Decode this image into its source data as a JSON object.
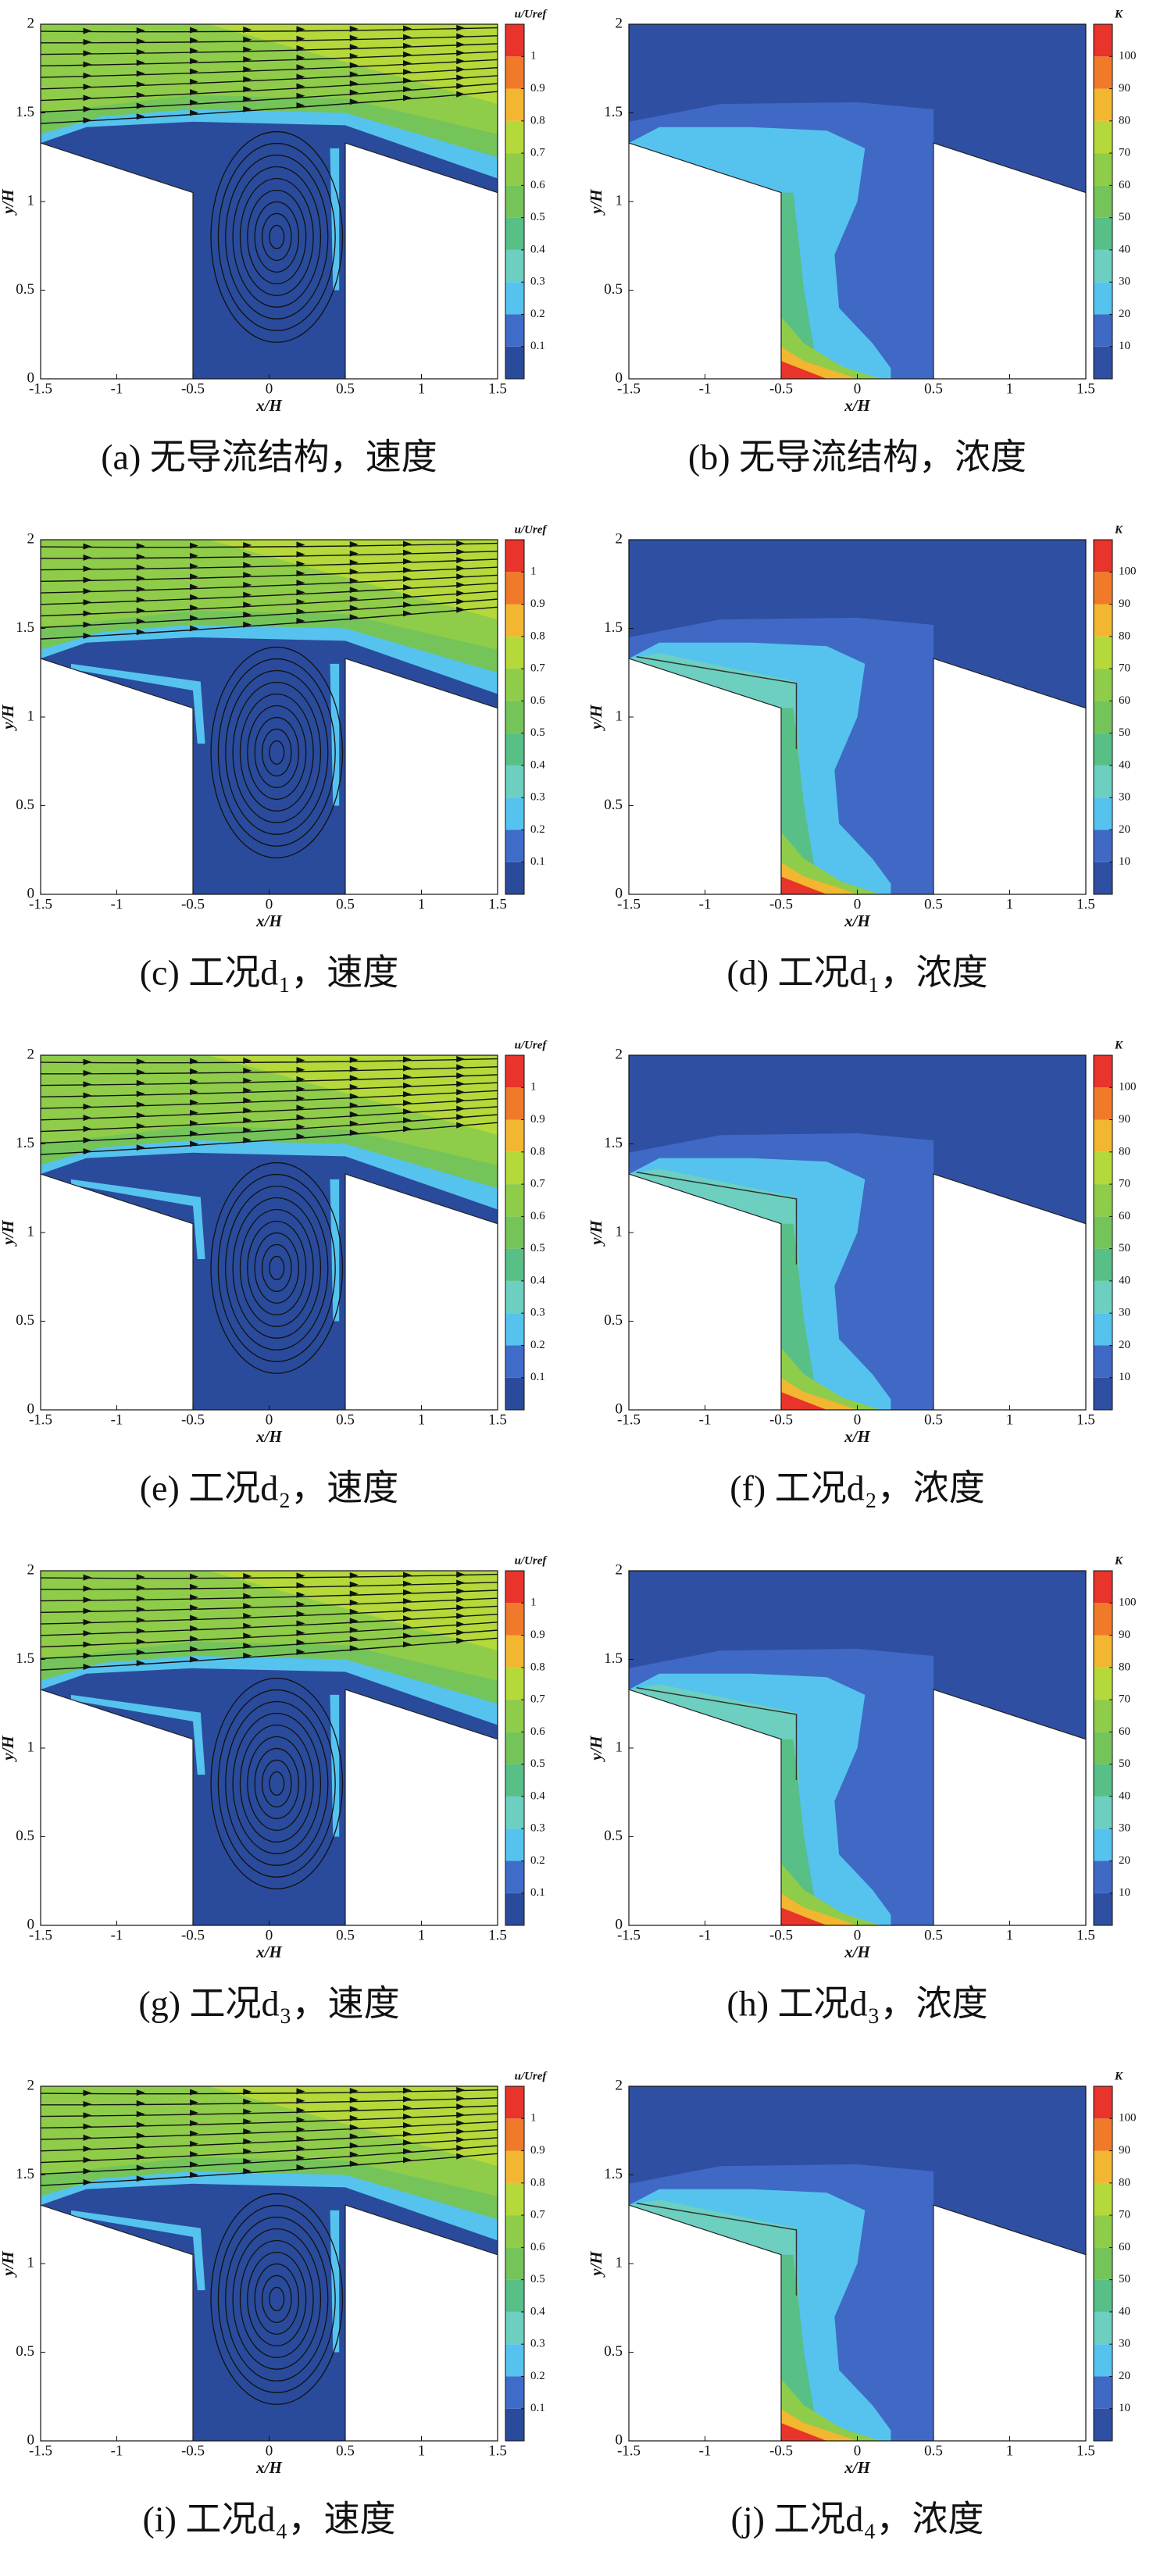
{
  "chart_data": [
    {
      "type": "velocity-contour",
      "caption": "(a) 无导流结构，速度",
      "xlabel": "x/H",
      "ylabel": "y/H",
      "xlim": [
        -1.5,
        1.5
      ],
      "ylim": [
        0,
        2
      ],
      "xticks": [
        -1.5,
        -1,
        -0.5,
        0,
        0.5,
        1,
        1.5
      ],
      "yticks": [
        0,
        0.5,
        1,
        1.5,
        2
      ],
      "colorbar": {
        "title": "u/Uref",
        "lim": [
          0,
          1.1
        ],
        "ticks": [
          0.1,
          0.2,
          0.3,
          0.4,
          0.5,
          0.6,
          0.7,
          0.8,
          0.9,
          1
        ],
        "colors": [
          "#2a4b9b",
          "#3e6cc8",
          "#55c3ee",
          "#6ccfc0",
          "#58bf86",
          "#74c45a",
          "#8fcc4a",
          "#b5d83a",
          "#f2b630",
          "#f07a2a",
          "#e8342a"
        ]
      }
    },
    {
      "type": "concentration-contour",
      "caption": "(b) 无导流结构，浓度",
      "xlabel": "x/H",
      "ylabel": "y/H",
      "xlim": [
        -1.5,
        1.5
      ],
      "ylim": [
        0,
        2
      ],
      "xticks": [
        -1.5,
        -1,
        -0.5,
        0,
        0.5,
        1,
        1.5
      ],
      "yticks": [
        0,
        0.5,
        1,
        1.5,
        2
      ],
      "colorbar": {
        "title": "K",
        "lim": [
          0,
          110
        ],
        "ticks": [
          10,
          20,
          30,
          40,
          50,
          60,
          70,
          80,
          90,
          100
        ],
        "colors": [
          "#2f4fa3",
          "#3f69c4",
          "#55c3ee",
          "#6ccfc0",
          "#58bf86",
          "#74c45a",
          "#8fcc4a",
          "#b5d83a",
          "#f2b630",
          "#f07a2a",
          "#e8342a"
        ]
      }
    },
    {
      "type": "velocity-contour",
      "caption": "(c) 工况d₁，速度",
      "xlabel": "x/H",
      "ylabel": "y/H",
      "xlim": [
        -1.5,
        1.5
      ],
      "ylim": [
        0,
        2
      ],
      "xticks": [
        -1.5,
        -1,
        -0.5,
        0,
        0.5,
        1,
        1.5
      ],
      "yticks": [
        0,
        0.5,
        1,
        1.5,
        2
      ],
      "colorbar": {
        "title": "u/Uref",
        "lim": [
          0,
          1.1
        ],
        "ticks": [
          0.1,
          0.2,
          0.3,
          0.4,
          0.5,
          0.6,
          0.7,
          0.8,
          0.9,
          1
        ],
        "colors": [
          "#2a4b9b",
          "#3e6cc8",
          "#55c3ee",
          "#6ccfc0",
          "#58bf86",
          "#74c45a",
          "#8fcc4a",
          "#b5d83a",
          "#f2b630",
          "#f07a2a",
          "#e8342a"
        ]
      }
    },
    {
      "type": "concentration-contour",
      "caption": "(d) 工况d₁，浓度",
      "xlabel": "x/H",
      "ylabel": "y/H",
      "xlim": [
        -1.5,
        1.5
      ],
      "ylim": [
        0,
        2
      ],
      "xticks": [
        -1.5,
        -1,
        -0.5,
        0,
        0.5,
        1,
        1.5
      ],
      "yticks": [
        0,
        0.5,
        1,
        1.5,
        2
      ],
      "colorbar": {
        "title": "K",
        "lim": [
          0,
          110
        ],
        "ticks": [
          10,
          20,
          30,
          40,
          50,
          60,
          70,
          80,
          90,
          100
        ],
        "colors": [
          "#2f4fa3",
          "#3f69c4",
          "#55c3ee",
          "#6ccfc0",
          "#58bf86",
          "#74c45a",
          "#8fcc4a",
          "#b5d83a",
          "#f2b630",
          "#f07a2a",
          "#e8342a"
        ]
      }
    },
    {
      "type": "velocity-contour",
      "caption": "(e) 工况d₂，速度",
      "xlabel": "x/H",
      "ylabel": "y/H",
      "xlim": [
        -1.5,
        1.5
      ],
      "ylim": [
        0,
        2
      ],
      "xticks": [
        -1.5,
        -1,
        -0.5,
        0,
        0.5,
        1,
        1.5
      ],
      "yticks": [
        0,
        0.5,
        1,
        1.5,
        2
      ],
      "colorbar": {
        "title": "u/Uref",
        "lim": [
          0,
          1.1
        ],
        "ticks": [
          0.1,
          0.2,
          0.3,
          0.4,
          0.5,
          0.6,
          0.7,
          0.8,
          0.9,
          1
        ],
        "colors": [
          "#2a4b9b",
          "#3e6cc8",
          "#55c3ee",
          "#6ccfc0",
          "#58bf86",
          "#74c45a",
          "#8fcc4a",
          "#b5d83a",
          "#f2b630",
          "#f07a2a",
          "#e8342a"
        ]
      }
    },
    {
      "type": "concentration-contour",
      "caption": "(f) 工况d₂，浓度",
      "xlabel": "x/H",
      "ylabel": "y/H",
      "xlim": [
        -1.5,
        1.5
      ],
      "ylim": [
        0,
        2
      ],
      "xticks": [
        -1.5,
        -1,
        -0.5,
        0,
        0.5,
        1,
        1.5
      ],
      "yticks": [
        0,
        0.5,
        1,
        1.5,
        2
      ],
      "colorbar": {
        "title": "K",
        "lim": [
          0,
          110
        ],
        "ticks": [
          10,
          20,
          30,
          40,
          50,
          60,
          70,
          80,
          90,
          100
        ],
        "colors": [
          "#2f4fa3",
          "#3f69c4",
          "#55c3ee",
          "#6ccfc0",
          "#58bf86",
          "#74c45a",
          "#8fcc4a",
          "#b5d83a",
          "#f2b630",
          "#f07a2a",
          "#e8342a"
        ]
      }
    },
    {
      "type": "velocity-contour",
      "caption": "(g) 工况d₃，速度",
      "xlabel": "x/H",
      "ylabel": "y/H",
      "xlim": [
        -1.5,
        1.5
      ],
      "ylim": [
        0,
        2
      ],
      "xticks": [
        -1.5,
        -1,
        -0.5,
        0,
        0.5,
        1,
        1.5
      ],
      "yticks": [
        0,
        0.5,
        1,
        1.5,
        2
      ],
      "colorbar": {
        "title": "u/Uref",
        "lim": [
          0,
          1.1
        ],
        "ticks": [
          0.1,
          0.2,
          0.3,
          0.4,
          0.5,
          0.6,
          0.7,
          0.8,
          0.9,
          1
        ],
        "colors": [
          "#2a4b9b",
          "#3e6cc8",
          "#55c3ee",
          "#6ccfc0",
          "#58bf86",
          "#74c45a",
          "#8fcc4a",
          "#b5d83a",
          "#f2b630",
          "#f07a2a",
          "#e8342a"
        ]
      }
    },
    {
      "type": "concentration-contour",
      "caption": "(h) 工况d₃，浓度",
      "xlabel": "x/H",
      "ylabel": "y/H",
      "xlim": [
        -1.5,
        1.5
      ],
      "ylim": [
        0,
        2
      ],
      "xticks": [
        -1.5,
        -1,
        -0.5,
        0,
        0.5,
        1,
        1.5
      ],
      "yticks": [
        0,
        0.5,
        1,
        1.5,
        2
      ],
      "colorbar": {
        "title": "K",
        "lim": [
          0,
          110
        ],
        "ticks": [
          10,
          20,
          30,
          40,
          50,
          60,
          70,
          80,
          90,
          100
        ],
        "colors": [
          "#2f4fa3",
          "#3f69c4",
          "#55c3ee",
          "#6ccfc0",
          "#58bf86",
          "#74c45a",
          "#8fcc4a",
          "#b5d83a",
          "#f2b630",
          "#f07a2a",
          "#e8342a"
        ]
      }
    },
    {
      "type": "velocity-contour",
      "caption": "(i) 工况d₄，速度",
      "xlabel": "x/H",
      "ylabel": "y/H",
      "xlim": [
        -1.5,
        1.5
      ],
      "ylim": [
        0,
        2
      ],
      "xticks": [
        -1.5,
        -1,
        -0.5,
        0,
        0.5,
        1,
        1.5
      ],
      "yticks": [
        0,
        0.5,
        1,
        1.5,
        2
      ],
      "colorbar": {
        "title": "u/Uref",
        "lim": [
          0,
          1.1
        ],
        "ticks": [
          0.1,
          0.2,
          0.3,
          0.4,
          0.5,
          0.6,
          0.7,
          0.8,
          0.9,
          1
        ],
        "colors": [
          "#2a4b9b",
          "#3e6cc8",
          "#55c3ee",
          "#6ccfc0",
          "#58bf86",
          "#74c45a",
          "#8fcc4a",
          "#b5d83a",
          "#f2b630",
          "#f07a2a",
          "#e8342a"
        ]
      }
    },
    {
      "type": "concentration-contour",
      "caption": "(j) 工况d₄，浓度",
      "xlabel": "x/H",
      "ylabel": "y/H",
      "xlim": [
        -1.5,
        1.5
      ],
      "ylim": [
        0,
        2
      ],
      "xticks": [
        -1.5,
        -1,
        -0.5,
        0,
        0.5,
        1,
        1.5
      ],
      "yticks": [
        0,
        0.5,
        1,
        1.5,
        2
      ],
      "colorbar": {
        "title": "K",
        "lim": [
          0,
          110
        ],
        "ticks": [
          10,
          20,
          30,
          40,
          50,
          60,
          70,
          80,
          90,
          100
        ],
        "colors": [
          "#2f4fa3",
          "#3f69c4",
          "#55c3ee",
          "#6ccfc0",
          "#58bf86",
          "#74c45a",
          "#8fcc4a",
          "#b5d83a",
          "#f2b630",
          "#f07a2a",
          "#e8342a"
        ]
      }
    }
  ]
}
